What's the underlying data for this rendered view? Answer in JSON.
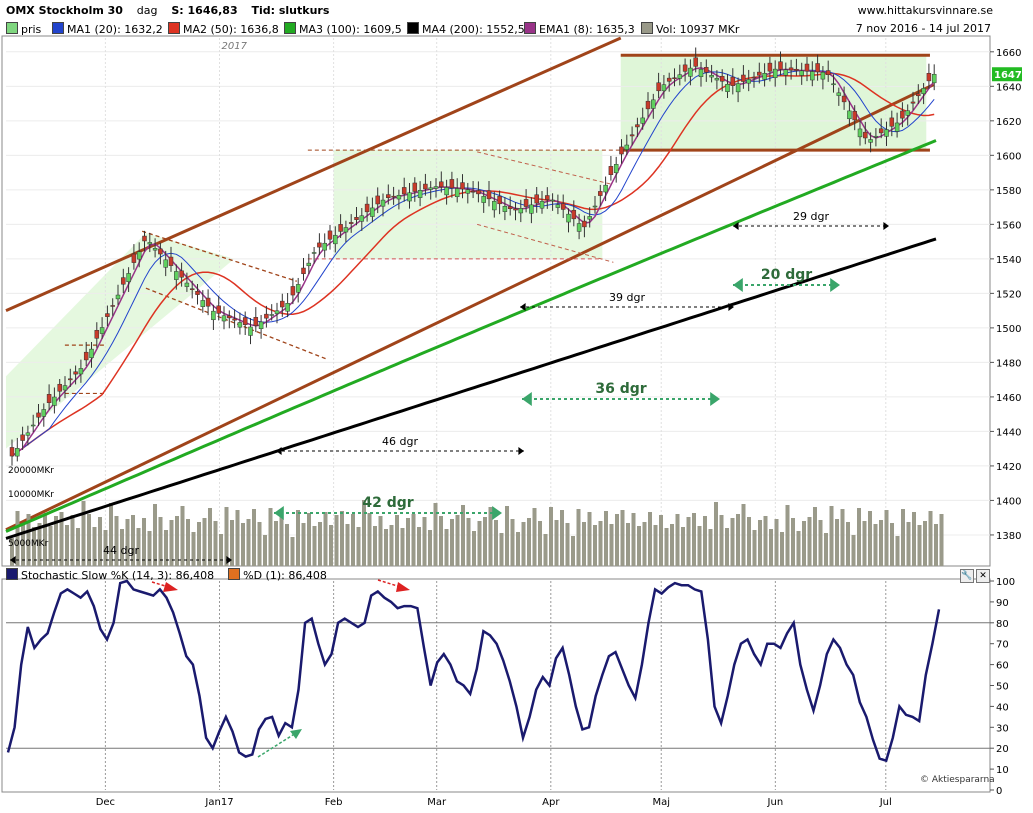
{
  "header": {
    "name": "OMX Stockholm 30",
    "period": "dag",
    "close": "S: 1646,83",
    "time": "Tid: slutkurs",
    "site": "www.hittakursvinnare.se"
  },
  "legend": {
    "items": [
      {
        "label": "pris",
        "color": "#7fd67f"
      },
      {
        "label": "MA1 (20): 1632,2",
        "color": "#2244cc"
      },
      {
        "label": "MA2 (50): 1636,8",
        "color": "#dd3322"
      },
      {
        "label": "MA3 (100): 1609,5",
        "color": "#22aa22"
      },
      {
        "label": "MA4 (200): 1552,5",
        "color": "#000000"
      },
      {
        "label": "EMA1 (8): 1635,3",
        "color": "#993388"
      },
      {
        "label": "Vol: 10937 MKr",
        "color": "#999988"
      }
    ],
    "date_range": "7 nov 2016 - 14 jul 2017"
  },
  "stoch_legend": {
    "k_label": "Stochastic Slow %K (14, 3): 86,408",
    "k_color": "#1a1a6e",
    "d_label": "%D (1): 86,408",
    "d_color": "#e07020"
  },
  "watermark": "© Aktiespararna",
  "year_label": "2017",
  "last_price_label": "1647",
  "chart_data": [
    {
      "type": "candlestick",
      "ylim": [
        1362,
        1668
      ],
      "yticks": [
        1380,
        1400,
        1420,
        1440,
        1460,
        1480,
        1500,
        1520,
        1540,
        1560,
        1580,
        1600,
        1620,
        1640,
        1660
      ],
      "xtick_labels": [
        "Dec",
        "Jan17",
        "Feb",
        "Mar",
        "Apr",
        "Maj",
        "Jun",
        "Jul"
      ],
      "approx_close_path": [
        {
          "date": "2016-11-07",
          "value": 1430
        },
        {
          "date": "2016-11-15",
          "value": 1455
        },
        {
          "date": "2016-11-25",
          "value": 1478
        },
        {
          "date": "2016-12-12",
          "value": 1552
        },
        {
          "date": "2016-12-30",
          "value": 1510
        },
        {
          "date": "2017-01-10",
          "value": 1500
        },
        {
          "date": "2017-01-20",
          "value": 1515
        },
        {
          "date": "2017-01-27",
          "value": 1545
        },
        {
          "date": "2017-02-15",
          "value": 1575
        },
        {
          "date": "2017-03-01",
          "value": 1582
        },
        {
          "date": "2017-03-10",
          "value": 1580
        },
        {
          "date": "2017-03-22",
          "value": 1568
        },
        {
          "date": "2017-04-01",
          "value": 1575
        },
        {
          "date": "2017-04-10",
          "value": 1558
        },
        {
          "date": "2017-04-20",
          "value": 1600
        },
        {
          "date": "2017-05-01",
          "value": 1640
        },
        {
          "date": "2017-05-10",
          "value": 1652
        },
        {
          "date": "2017-05-20",
          "value": 1640
        },
        {
          "date": "2017-06-01",
          "value": 1650
        },
        {
          "date": "2017-06-15",
          "value": 1648
        },
        {
          "date": "2017-06-26",
          "value": 1608
        },
        {
          "date": "2017-07-05",
          "value": 1620
        },
        {
          "date": "2017-07-14",
          "value": 1647
        }
      ],
      "moving_averages": [
        {
          "name": "MA1 (20)",
          "last": 1632.2
        },
        {
          "name": "MA2 (50)",
          "last": 1636.8
        },
        {
          "name": "MA3 (100)",
          "last": 1609.5
        },
        {
          "name": "MA4 (200)",
          "last": 1552.5
        },
        {
          "name": "EMA1 (8)",
          "last": 1635.3
        }
      ],
      "volume": {
        "last": "10937 MKr",
        "axis_labels": [
          "20000MKr",
          "10000MKr",
          "5000MKr"
        ]
      },
      "annotations": [
        "44 dgr",
        "46 dgr",
        "42 dgr",
        "39 dgr",
        "36 dgr",
        "29 dgr",
        "20 dgr"
      ],
      "last_price": 1647
    },
    {
      "type": "line",
      "title": "Stochastic Slow %K (14, 3)",
      "ylim": [
        0,
        100
      ],
      "yticks": [
        0,
        10,
        20,
        30,
        40,
        50,
        60,
        70,
        80,
        90,
        100
      ],
      "reference_lines": [
        20,
        80
      ],
      "series": [
        {
          "name": "%K",
          "values": [
            18,
            30,
            60,
            78,
            68,
            72,
            75,
            85,
            94,
            96,
            94,
            92,
            95,
            88,
            77,
            72,
            80,
            99,
            100,
            96,
            95,
            94,
            93,
            96,
            92,
            85,
            75,
            64,
            60,
            45,
            25,
            20,
            28,
            35,
            28,
            18,
            16,
            17,
            29,
            34,
            35,
            26,
            32,
            30,
            48,
            80,
            82,
            70,
            60,
            65,
            80,
            82,
            80,
            78,
            80,
            93,
            95,
            92,
            90,
            87,
            88,
            88,
            87,
            68,
            50,
            61,
            65,
            60,
            52,
            50,
            46,
            58,
            76,
            74,
            70,
            62,
            52,
            40,
            25,
            35,
            48,
            54,
            50,
            63,
            68,
            55,
            40,
            29,
            30,
            45,
            55,
            64,
            66,
            58,
            50,
            44,
            60,
            80,
            96,
            94,
            97,
            99,
            98,
            98,
            96,
            95,
            72,
            40,
            32,
            45,
            60,
            70,
            72,
            65,
            60,
            70,
            70,
            68,
            75,
            80,
            60,
            48,
            38,
            50,
            65,
            72,
            68,
            60,
            55,
            42,
            35,
            24,
            15,
            14,
            25,
            40,
            36,
            35,
            33,
            55,
            70,
            86.4
          ]
        }
      ]
    }
  ]
}
